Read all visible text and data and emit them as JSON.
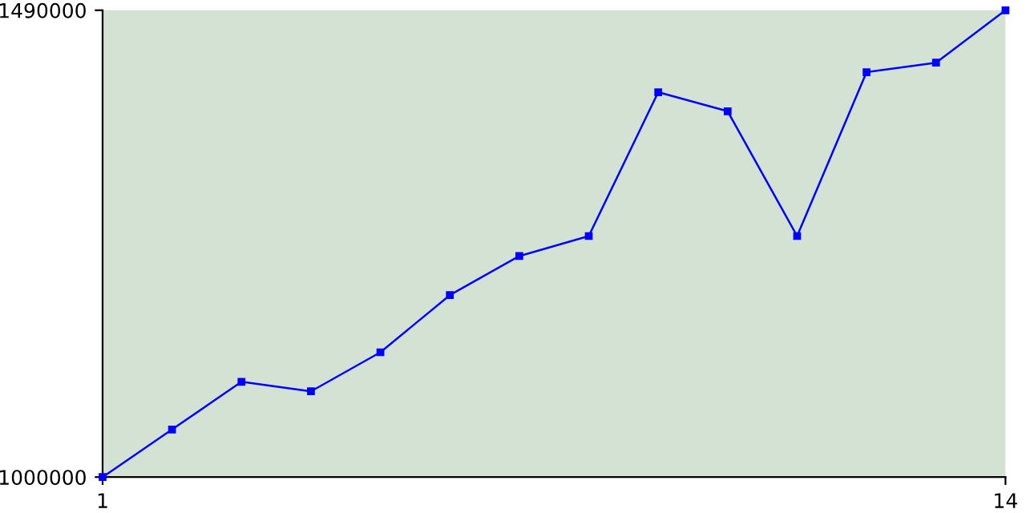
{
  "chart_data": {
    "type": "line",
    "x": [
      1,
      2,
      3,
      4,
      5,
      6,
      7,
      8,
      9,
      10,
      11,
      12,
      13,
      14
    ],
    "series": [
      {
        "color": "#0000ff",
        "values": [
          1000000,
          1050000,
          1100000,
          1090000,
          1131000,
          1191000,
          1232000,
          1253000,
          1404000,
          1384000,
          1253000,
          1425000,
          1435000,
          1490000
        ]
      }
    ],
    "xlim": [
      1,
      14
    ],
    "xticks": [
      1,
      14
    ],
    "ylim": [
      1000000,
      1490000
    ],
    "yticks": [
      1000000,
      1490000
    ],
    "grid": false,
    "legend": false,
    "marker": "square",
    "line_style": "solid"
  }
}
